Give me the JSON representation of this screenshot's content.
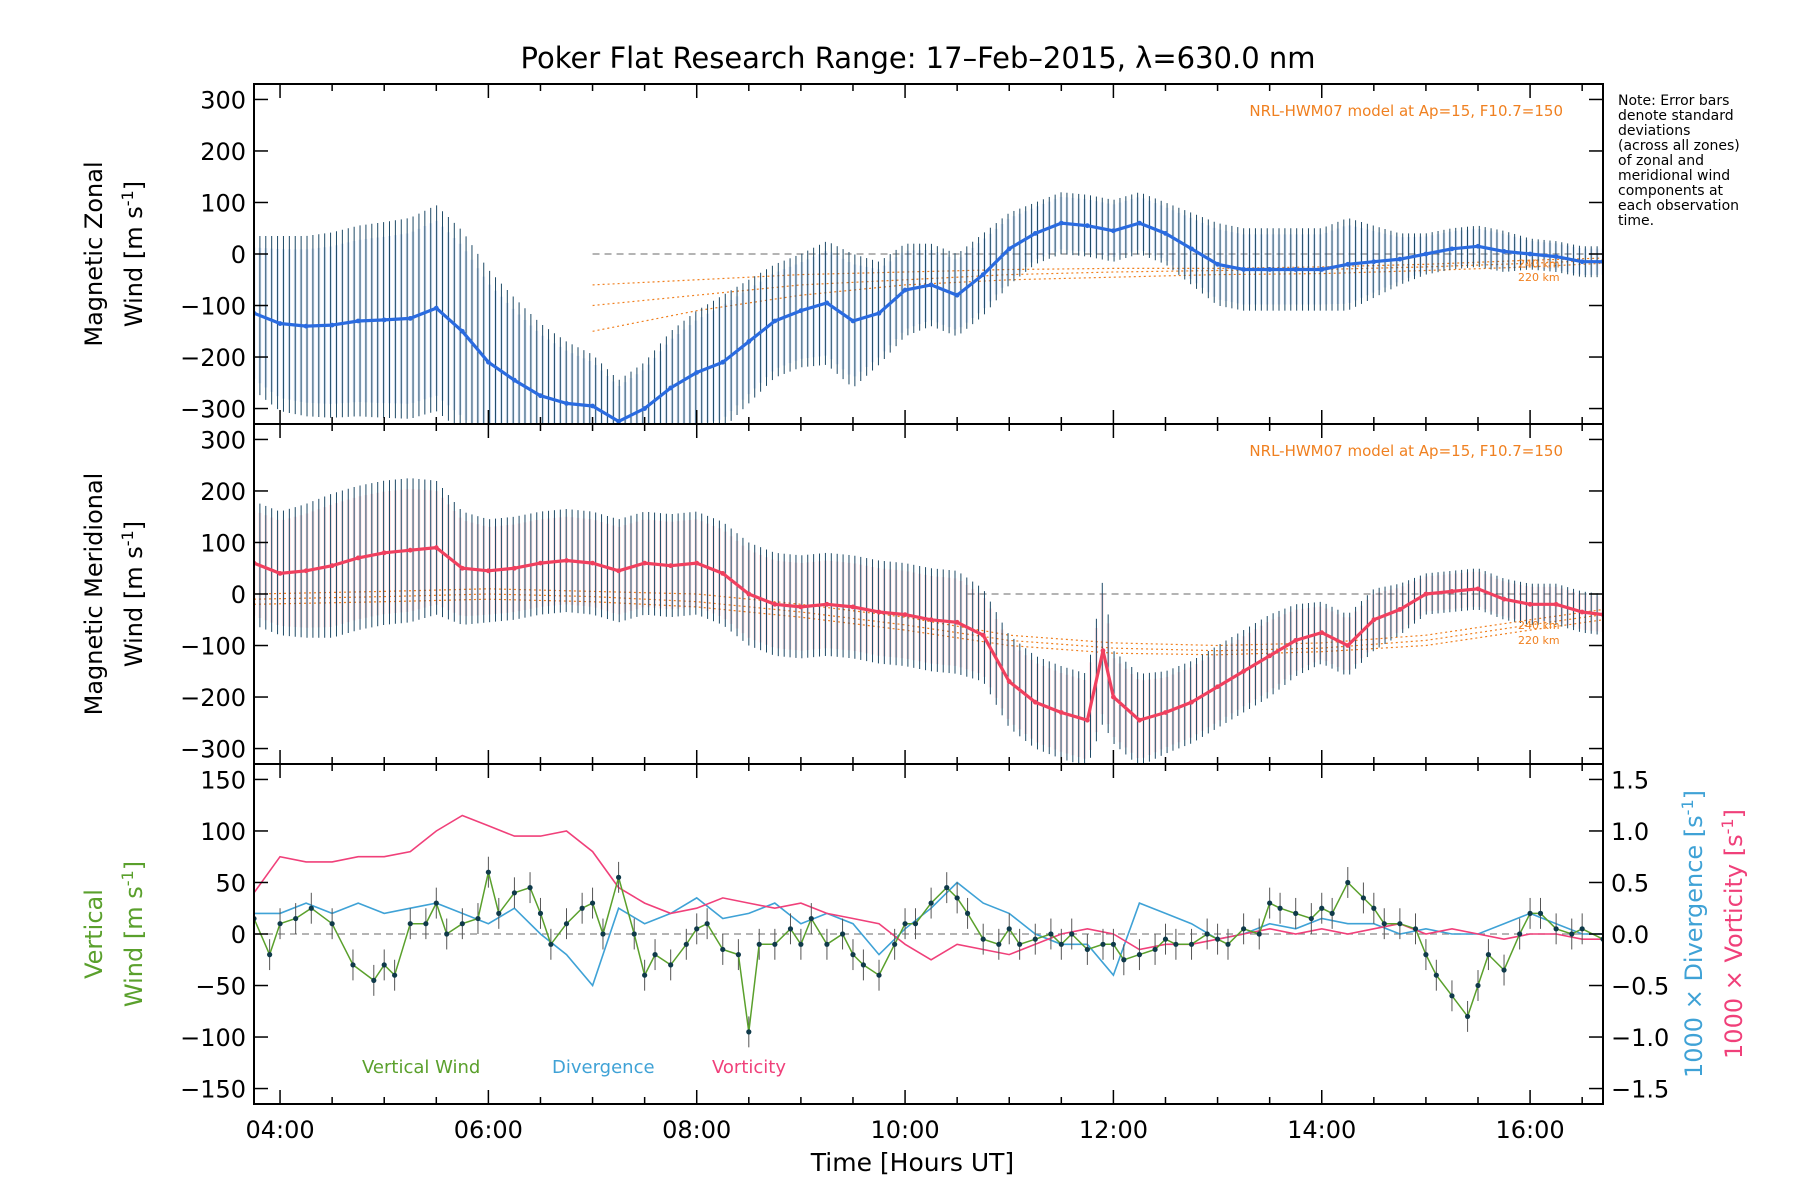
{
  "title": "Poker Flat Research Range: 17–Feb–2015, λ=630.0 nm",
  "note_lines": [
    "Note: Error bars",
    "denote standard",
    "deviations",
    "(across all zones)",
    "of zonal and",
    "meridional wind",
    "components at",
    "each observation",
    "time."
  ],
  "colors": {
    "zonal": "#2a6be0",
    "meridional": "#f0405f",
    "vertical": "#5aa02c",
    "divergence": "#3fa2d6",
    "vorticity": "#f0407a",
    "model": "#f08020",
    "scatter": "#9b8fd8",
    "errorbar": "#1e4a66",
    "zero": "#888888"
  },
  "chart_data": [
    {
      "type": "line",
      "name": "zonal-panel",
      "ylabel_line1": "Magnetic Zonal",
      "ylabel_line2": "Wind [m s",
      "ylabel_sup": "-1",
      "ylabel_close": "]",
      "ylim": [
        -330,
        330
      ],
      "yticks": [
        300,
        200,
        100,
        0,
        -100,
        -200,
        -300
      ],
      "xlim": [
        3.75,
        16.7
      ],
      "model_label": "NRL-HWM07 model at Ap=15, F10.7=150",
      "model_alt_labels": [
        "240 km",
        "220 km"
      ],
      "x": [
        3.75,
        4.0,
        4.25,
        4.5,
        4.75,
        5.0,
        5.25,
        5.5,
        5.75,
        6.0,
        6.25,
        6.5,
        6.75,
        7.0,
        7.25,
        7.5,
        7.75,
        8.0,
        8.25,
        8.5,
        8.75,
        9.0,
        9.25,
        9.5,
        9.75,
        10.0,
        10.25,
        10.5,
        10.75,
        11.0,
        11.25,
        11.5,
        11.75,
        12.0,
        12.25,
        12.5,
        12.75,
        13.0,
        13.25,
        13.5,
        13.75,
        14.0,
        14.25,
        14.5,
        14.75,
        15.0,
        15.25,
        15.5,
        15.75,
        16.0,
        16.25,
        16.5,
        16.7
      ],
      "values": [
        -115,
        -135,
        -140,
        -138,
        -130,
        -128,
        -125,
        -105,
        -150,
        -210,
        -245,
        -275,
        -290,
        -295,
        -325,
        -300,
        -260,
        -230,
        -210,
        -170,
        -130,
        -110,
        -95,
        -130,
        -115,
        -70,
        -60,
        -80,
        -40,
        10,
        40,
        60,
        55,
        45,
        60,
        40,
        10,
        -20,
        -30,
        -30,
        -30,
        -30,
        -20,
        -15,
        -10,
        0,
        10,
        15,
        5,
        0,
        -5,
        -15,
        -15
      ],
      "error": [
        150,
        170,
        175,
        180,
        185,
        190,
        195,
        200,
        195,
        180,
        160,
        140,
        120,
        100,
        80,
        90,
        110,
        120,
        130,
        120,
        110,
        110,
        120,
        130,
        100,
        90,
        80,
        80,
        80,
        70,
        60,
        60,
        60,
        60,
        60,
        60,
        70,
        80,
        80,
        80,
        80,
        80,
        90,
        70,
        50,
        40,
        40,
        40,
        40,
        30,
        30,
        30,
        30
      ],
      "model_x": [
        7.0,
        8.0,
        9.0,
        10.0,
        11.0,
        12.0,
        13.0,
        14.0,
        15.0,
        16.0,
        16.7
      ],
      "model_series": [
        {
          "values": [
            -60,
            -50,
            -40,
            -35,
            -30,
            -28,
            -28,
            -25,
            -20,
            -12,
            -8
          ]
        },
        {
          "values": [
            -100,
            -80,
            -60,
            -50,
            -40,
            -35,
            -32,
            -30,
            -25,
            -18,
            -12
          ]
        },
        {
          "values": [
            -150,
            -110,
            -80,
            -60,
            -50,
            -45,
            -40,
            -38,
            -32,
            -25,
            -18
          ]
        }
      ]
    },
    {
      "type": "line",
      "name": "meridional-panel",
      "ylabel_line1": "Magnetic Meridional",
      "ylabel_line2": "Wind [m s",
      "ylabel_sup": "-1",
      "ylabel_close": "]",
      "ylim": [
        -330,
        330
      ],
      "yticks": [
        300,
        200,
        100,
        0,
        -100,
        -200,
        -300
      ],
      "xlim": [
        3.75,
        16.7
      ],
      "model_label": "NRL-HWM07 model at Ap=15, F10.7=150",
      "model_alt_labels": [
        "240 km",
        "220 km"
      ],
      "x": [
        3.75,
        4.0,
        4.25,
        4.5,
        4.75,
        5.0,
        5.25,
        5.5,
        5.75,
        6.0,
        6.25,
        6.5,
        6.75,
        7.0,
        7.25,
        7.5,
        7.75,
        8.0,
        8.25,
        8.5,
        8.75,
        9.0,
        9.25,
        9.5,
        9.75,
        10.0,
        10.25,
        10.5,
        10.75,
        11.0,
        11.25,
        11.5,
        11.75,
        11.9,
        12.0,
        12.25,
        12.5,
        12.75,
        13.0,
        13.25,
        13.5,
        13.75,
        14.0,
        14.25,
        14.5,
        14.75,
        15.0,
        15.25,
        15.5,
        15.75,
        16.0,
        16.25,
        16.5,
        16.7
      ],
      "values": [
        60,
        40,
        45,
        55,
        70,
        80,
        85,
        90,
        50,
        45,
        50,
        60,
        65,
        60,
        45,
        60,
        55,
        60,
        40,
        0,
        -20,
        -25,
        -20,
        -25,
        -35,
        -40,
        -50,
        -55,
        -80,
        -170,
        -210,
        -230,
        -245,
        -110,
        -200,
        -245,
        -230,
        -210,
        -180,
        -150,
        -120,
        -90,
        -75,
        -100,
        -50,
        -30,
        0,
        5,
        10,
        -10,
        -20,
        -20,
        -35,
        -40
      ],
      "error": [
        120,
        120,
        130,
        140,
        140,
        140,
        140,
        130,
        110,
        100,
        100,
        100,
        100,
        100,
        100,
        100,
        100,
        100,
        100,
        100,
        100,
        100,
        100,
        100,
        100,
        100,
        100,
        100,
        90,
        90,
        90,
        90,
        90,
        140,
        90,
        90,
        80,
        80,
        80,
        80,
        80,
        70,
        60,
        60,
        60,
        50,
        40,
        40,
        40,
        40,
        40,
        40,
        40,
        40
      ],
      "model_x": [
        3.75,
        5.0,
        6.0,
        7.0,
        8.0,
        9.0,
        10.0,
        11.0,
        12.0,
        13.0,
        14.0,
        15.0,
        16.0,
        16.7
      ],
      "model_series": [
        {
          "values": [
            0,
            5,
            10,
            5,
            0,
            -20,
            -45,
            -80,
            -95,
            -100,
            -95,
            -80,
            -50,
            -30
          ]
        },
        {
          "values": [
            -10,
            -5,
            0,
            -5,
            -15,
            -35,
            -60,
            -90,
            -105,
            -110,
            -105,
            -90,
            -60,
            -40
          ]
        },
        {
          "values": [
            -20,
            -15,
            -10,
            -15,
            -25,
            -45,
            -70,
            -100,
            -115,
            -118,
            -112,
            -100,
            -70,
            -50
          ]
        }
      ]
    },
    {
      "type": "line",
      "name": "vertical-panel",
      "ylabel_line1": "Vertical",
      "ylabel_line2": "Wind [m s",
      "ylabel_sup": "-1",
      "ylabel_close": "]",
      "ylim": [
        -165,
        165
      ],
      "yticks": [
        150,
        100,
        50,
        0,
        -50,
        -100,
        -150
      ],
      "y2lim": [
        -1.65,
        1.65
      ],
      "y2ticks": [
        1.5,
        1.0,
        0.5,
        0.0,
        -0.5,
        -1.0,
        -1.5
      ],
      "y2tick_labels": [
        "1.5",
        "1.0",
        "0.5",
        "0.0",
        "−0.5",
        "−1.0",
        "−1.5"
      ],
      "y2label_div": "1000 × Divergence [s",
      "y2label_vort": "1000 × Vorticity [s",
      "y2label_sup": "-1",
      "y2label_close": "]",
      "xlim": [
        3.75,
        16.7
      ],
      "xticks": [
        4,
        6,
        8,
        10,
        12,
        14,
        16
      ],
      "xtick_labels": [
        "04:00",
        "06:00",
        "08:00",
        "10:00",
        "12:00",
        "14:00",
        "16:00"
      ],
      "xlabel": "Time [Hours UT]",
      "legend": [
        "Vertical Wind",
        "Divergence",
        "Vorticity"
      ],
      "vertical_x": [
        3.75,
        3.9,
        4.0,
        4.15,
        4.3,
        4.5,
        4.7,
        4.9,
        5.0,
        5.1,
        5.25,
        5.4,
        5.5,
        5.6,
        5.75,
        5.9,
        6.0,
        6.1,
        6.25,
        6.4,
        6.5,
        6.6,
        6.75,
        6.9,
        7.0,
        7.1,
        7.25,
        7.4,
        7.5,
        7.6,
        7.75,
        7.9,
        8.0,
        8.1,
        8.25,
        8.4,
        8.5,
        8.6,
        8.75,
        8.9,
        9.0,
        9.1,
        9.25,
        9.4,
        9.5,
        9.6,
        9.75,
        9.9,
        10.0,
        10.1,
        10.25,
        10.4,
        10.5,
        10.6,
        10.75,
        10.9,
        11.0,
        11.1,
        11.25,
        11.4,
        11.5,
        11.6,
        11.75,
        11.9,
        12.0,
        12.1,
        12.25,
        12.4,
        12.5,
        12.6,
        12.75,
        12.9,
        13.0,
        13.1,
        13.25,
        13.4,
        13.5,
        13.6,
        13.75,
        13.9,
        14.0,
        14.1,
        14.25,
        14.4,
        14.5,
        14.6,
        14.75,
        14.9,
        15.0,
        15.1,
        15.25,
        15.4,
        15.5,
        15.6,
        15.75,
        15.9,
        16.0,
        16.1,
        16.25,
        16.4,
        16.5,
        16.7
      ],
      "vertical_values": [
        15,
        -20,
        10,
        15,
        25,
        10,
        -30,
        -45,
        -30,
        -40,
        10,
        10,
        30,
        0,
        10,
        15,
        60,
        20,
        40,
        45,
        20,
        -10,
        10,
        25,
        30,
        0,
        55,
        0,
        -40,
        -20,
        -30,
        -10,
        5,
        10,
        -15,
        -20,
        -95,
        -10,
        -10,
        5,
        -10,
        15,
        -10,
        0,
        -20,
        -30,
        -40,
        -10,
        10,
        10,
        30,
        45,
        35,
        20,
        -5,
        -10,
        5,
        -10,
        -5,
        0,
        -10,
        0,
        -15,
        -10,
        -10,
        -25,
        -20,
        -15,
        -5,
        -10,
        -10,
        0,
        -5,
        -10,
        5,
        0,
        30,
        25,
        20,
        15,
        25,
        20,
        50,
        35,
        25,
        10,
        10,
        5,
        -20,
        -40,
        -60,
        -80,
        -50,
        -20,
        -35,
        0,
        20,
        20,
        5,
        0,
        5,
        -5
      ],
      "divergence_x": [
        3.75,
        4.0,
        4.25,
        4.5,
        4.75,
        5.0,
        5.25,
        5.5,
        5.75,
        6.0,
        6.25,
        6.5,
        6.75,
        7.0,
        7.25,
        7.5,
        7.75,
        8.0,
        8.25,
        8.5,
        8.75,
        9.0,
        9.25,
        9.5,
        9.75,
        10.0,
        10.25,
        10.5,
        10.75,
        11.0,
        11.25,
        11.5,
        11.75,
        12.0,
        12.25,
        12.5,
        12.75,
        13.0,
        13.25,
        13.5,
        13.75,
        14.0,
        14.25,
        14.5,
        14.75,
        15.0,
        15.25,
        15.5,
        15.75,
        16.0,
        16.25,
        16.5,
        16.7
      ],
      "divergence_values": [
        0.2,
        0.2,
        0.3,
        0.2,
        0.3,
        0.2,
        0.25,
        0.3,
        0.2,
        0.1,
        0.25,
        0.0,
        -0.2,
        -0.5,
        0.25,
        0.1,
        0.2,
        0.35,
        0.15,
        0.2,
        0.3,
        0.1,
        0.2,
        0.1,
        -0.2,
        0.05,
        0.25,
        0.5,
        0.3,
        0.2,
        0.0,
        -0.1,
        -0.1,
        -0.4,
        0.3,
        0.2,
        0.1,
        -0.05,
        0.0,
        0.1,
        0.05,
        0.15,
        0.1,
        0.1,
        0.0,
        0.05,
        0.0,
        0.0,
        0.1,
        0.2,
        0.1,
        0.0,
        0.0
      ],
      "vorticity_x": [
        3.75,
        4.0,
        4.25,
        4.5,
        4.75,
        5.0,
        5.25,
        5.5,
        5.75,
        6.0,
        6.25,
        6.5,
        6.75,
        7.0,
        7.25,
        7.5,
        7.75,
        8.0,
        8.25,
        8.5,
        8.75,
        9.0,
        9.25,
        9.5,
        9.75,
        10.0,
        10.25,
        10.5,
        10.75,
        11.0,
        11.25,
        11.5,
        11.75,
        12.0,
        12.25,
        12.5,
        12.75,
        13.0,
        13.25,
        13.5,
        13.75,
        14.0,
        14.25,
        14.5,
        14.75,
        15.0,
        15.25,
        15.5,
        15.75,
        16.0,
        16.25,
        16.5,
        16.7
      ],
      "vorticity_values": [
        0.4,
        0.75,
        0.7,
        0.7,
        0.75,
        0.75,
        0.8,
        1.0,
        1.15,
        1.05,
        0.95,
        0.95,
        1.0,
        0.8,
        0.45,
        0.3,
        0.2,
        0.25,
        0.35,
        0.3,
        0.25,
        0.3,
        0.2,
        0.15,
        0.1,
        -0.1,
        -0.25,
        -0.1,
        -0.15,
        -0.2,
        -0.1,
        0.0,
        0.05,
        0.0,
        -0.15,
        -0.1,
        -0.1,
        -0.05,
        0.0,
        0.05,
        0.0,
        0.05,
        0.0,
        0.05,
        0.1,
        0.0,
        0.05,
        0.0,
        -0.05,
        0.0,
        0.0,
        -0.05,
        -0.05
      ]
    }
  ]
}
